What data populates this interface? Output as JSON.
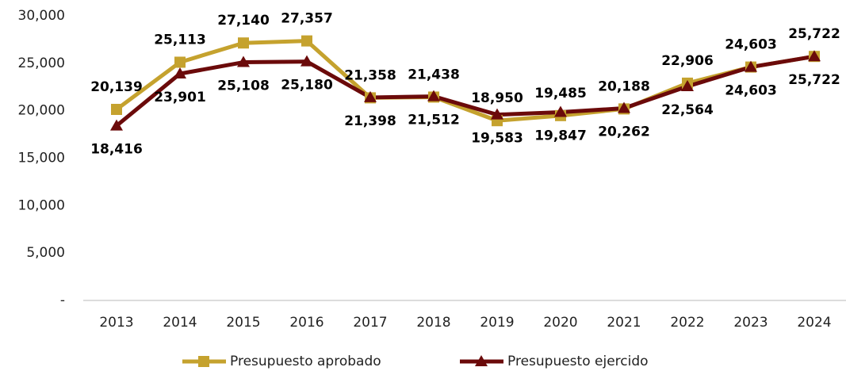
{
  "chart_data": {
    "type": "line",
    "categories": [
      "2013",
      "2014",
      "2015",
      "2016",
      "2017",
      "2018",
      "2019",
      "2020",
      "2021",
      "2022",
      "2023",
      "2024"
    ],
    "series": [
      {
        "name": "Presupuesto aprobado",
        "color": "#c5a22e",
        "marker": "square",
        "values": [
          20139,
          25113,
          27140,
          27357,
          21358,
          21438,
          18950,
          19485,
          20188,
          22906,
          24603,
          25722
        ],
        "value_labels": [
          "20,139",
          "25,113",
          "27,140",
          "27,357",
          "21,358",
          "21,438",
          "18,950",
          "19,485",
          "20,188",
          "22,906",
          "24,603",
          "25,722"
        ]
      },
      {
        "name": "Presupuesto ejercido",
        "color": "#6b0a0a",
        "marker": "triangle",
        "values": [
          18416,
          23901,
          25108,
          25180,
          21398,
          21512,
          19583,
          19847,
          20262,
          22564,
          24603,
          25722
        ],
        "value_labels": [
          "18,416",
          "23,901",
          "25,108",
          "25,180",
          "21,398",
          "21,512",
          "19,583",
          "19,847",
          "20,262",
          "22,564",
          "24,603",
          "25,722"
        ]
      }
    ],
    "ylim": [
      0,
      30000
    ],
    "yticks": [
      {
        "value": 0,
        "label": "-"
      },
      {
        "value": 5000,
        "label": "5,000"
      },
      {
        "value": 10000,
        "label": "10,000"
      },
      {
        "value": 15000,
        "label": "15,000"
      },
      {
        "value": 20000,
        "label": "20,000"
      },
      {
        "value": 25000,
        "label": "25,000"
      },
      {
        "value": 30000,
        "label": "30,000"
      }
    ],
    "grid": false,
    "legend": "bottom"
  }
}
